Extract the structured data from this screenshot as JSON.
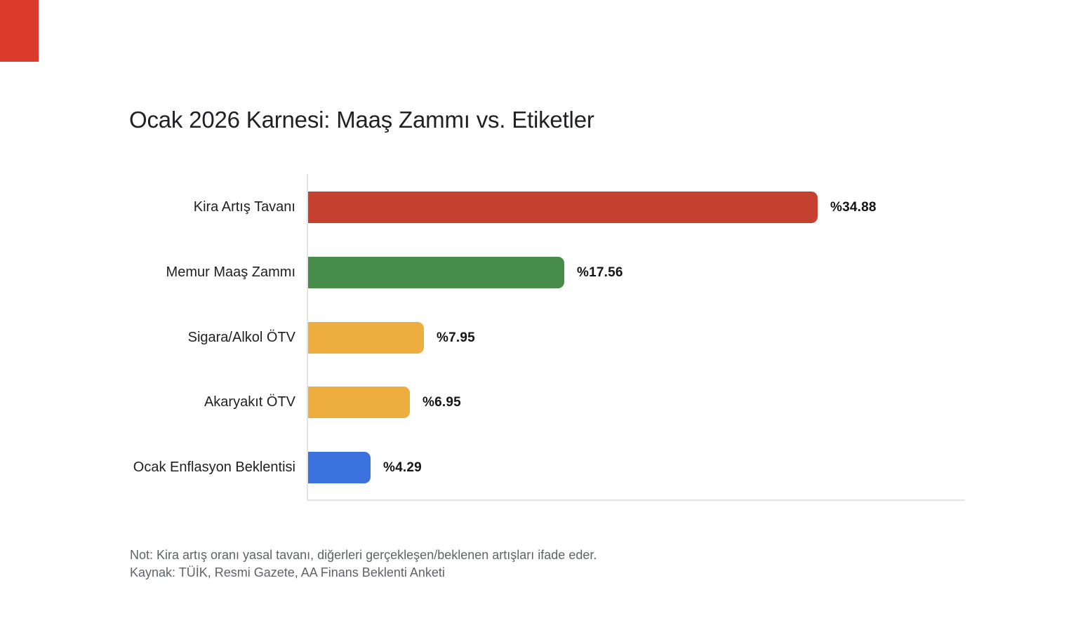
{
  "page": {
    "background": "#ffffff",
    "corner_marker_color": "#dc3a2b"
  },
  "chart_data": {
    "type": "bar",
    "orientation": "horizontal",
    "title": "Ocak 2026 Karnesi: Maaş Zammı vs. Etiketler",
    "categories": [
      "Kira Artış Tavanı",
      "Memur Maaş Zammı",
      "Sigara/Alkol ÖTV",
      "Akaryakıt ÖTV",
      "Ocak Enflasyon Beklentisi"
    ],
    "values": [
      34.88,
      17.56,
      7.95,
      6.95,
      4.29
    ],
    "value_labels": [
      "%34.88",
      "%17.56",
      "%7.95",
      "%6.95",
      "%4.29"
    ],
    "bar_colors": [
      "#c64030",
      "#478c4b",
      "#edad3f",
      "#edad3f",
      "#3b72dd"
    ],
    "xlim": [
      0,
      45
    ],
    "grid": false,
    "legend": false,
    "axis_color": "#e4e4e4",
    "notes": [
      "Not: Kira artış oranı yasal tavanı, diğerleri gerçekleşen/beklenen artışları ifade eder.",
      "Kaynak: TÜİK, Resmi Gazete, AA Finans Beklenti Anketi"
    ]
  }
}
